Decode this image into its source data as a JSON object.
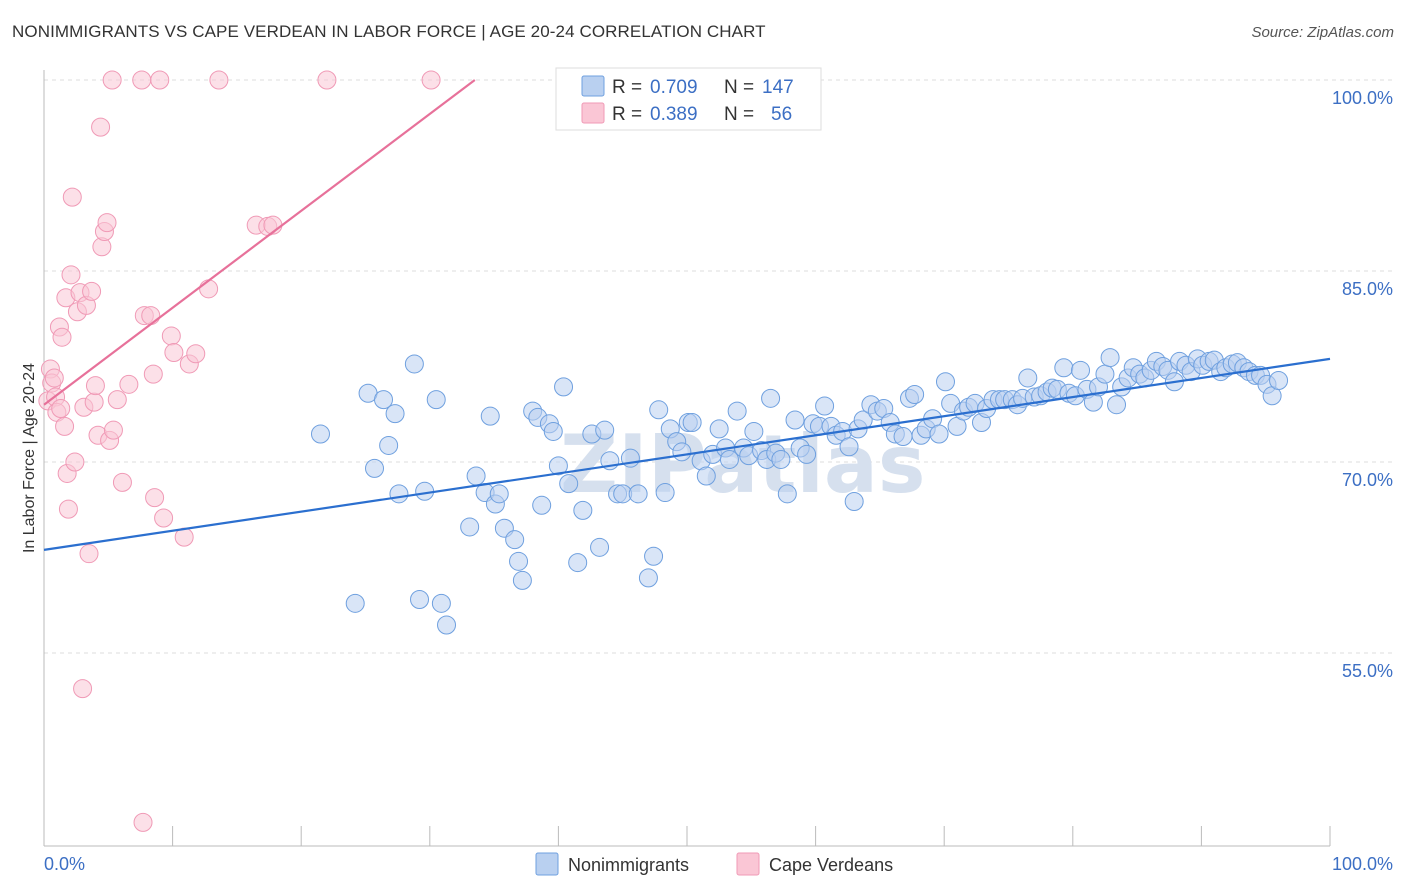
{
  "title": "NONIMMIGRANTS VS CAPE VERDEAN IN LABOR FORCE | AGE 20-24 CORRELATION CHART",
  "source": "Source: ZipAtlas.com",
  "watermark": "ZIPatlas",
  "colors": {
    "blue": "#6fa0df",
    "blue_fill": "#b9d0f0",
    "blue_line": "#2b6fcf",
    "pink": "#f09ab6",
    "pink_fill": "#fac6d5",
    "pink_line": "#e7719a",
    "grid": "#dddddd",
    "tick_text": "#3c6fc4"
  },
  "legend": {
    "rows": [
      {
        "r_label": "R =",
        "r_value": "0.709",
        "n_label": "N =",
        "n_value": "147"
      },
      {
        "r_label": "R =",
        "r_value": "0.389",
        "n_label": "N =",
        "n_value": "56"
      }
    ]
  },
  "chart_data": {
    "type": "scatter",
    "xlabel": "",
    "ylabel": "In Labor Force | Age 20-24",
    "x_tick_labels": [
      "0.0%",
      "100.0%"
    ],
    "y_tick_labels": [
      "55.0%",
      "70.0%",
      "85.0%",
      "100.0%"
    ],
    "xlim": [
      0,
      100
    ],
    "ylim": [
      42,
      100
    ],
    "grid": true,
    "legend_position": "top-center",
    "series": [
      {
        "name": "Nonimmigrants",
        "color": "#6fa0df",
        "trend": {
          "x": [
            0,
            100
          ],
          "y": [
            63.1,
            78.1
          ]
        },
        "points": [
          [
            21.5,
            72.2
          ],
          [
            24.2,
            58.9
          ],
          [
            25.2,
            75.4
          ],
          [
            25.7,
            69.5
          ],
          [
            26.4,
            74.9
          ],
          [
            26.8,
            71.3
          ],
          [
            27.3,
            73.8
          ],
          [
            27.6,
            67.5
          ],
          [
            28.8,
            77.7
          ],
          [
            29.2,
            59.2
          ],
          [
            29.6,
            67.7
          ],
          [
            30.5,
            74.9
          ],
          [
            30.9,
            58.9
          ],
          [
            31.3,
            57.2
          ],
          [
            33.1,
            64.9
          ],
          [
            33.6,
            68.9
          ],
          [
            34.3,
            67.6
          ],
          [
            34.7,
            73.6
          ],
          [
            35.1,
            66.7
          ],
          [
            35.4,
            67.5
          ],
          [
            35.8,
            64.8
          ],
          [
            36.6,
            63.9
          ],
          [
            36.9,
            62.2
          ],
          [
            37.2,
            60.7
          ],
          [
            38.0,
            74.0
          ],
          [
            38.4,
            73.5
          ],
          [
            38.7,
            66.6
          ],
          [
            39.3,
            73.0
          ],
          [
            39.6,
            72.4
          ],
          [
            40.0,
            69.7
          ],
          [
            40.4,
            75.9
          ],
          [
            40.8,
            68.3
          ],
          [
            41.5,
            62.1
          ],
          [
            41.9,
            66.2
          ],
          [
            42.6,
            72.2
          ],
          [
            43.2,
            63.3
          ],
          [
            43.6,
            72.5
          ],
          [
            44.0,
            70.1
          ],
          [
            44.6,
            67.5
          ],
          [
            45.0,
            67.5
          ],
          [
            45.6,
            70.3
          ],
          [
            46.2,
            67.5
          ],
          [
            47.0,
            60.9
          ],
          [
            47.4,
            62.6
          ],
          [
            47.8,
            74.1
          ],
          [
            48.3,
            67.6
          ],
          [
            48.7,
            72.6
          ],
          [
            49.2,
            71.6
          ],
          [
            49.6,
            70.8
          ],
          [
            50.1,
            73.1
          ],
          [
            50.4,
            73.1
          ],
          [
            51.1,
            70.1
          ],
          [
            51.5,
            68.9
          ],
          [
            52.0,
            70.6
          ],
          [
            52.5,
            72.6
          ],
          [
            53.0,
            71.1
          ],
          [
            53.3,
            70.2
          ],
          [
            53.9,
            74.0
          ],
          [
            54.4,
            71.1
          ],
          [
            54.8,
            70.5
          ],
          [
            55.2,
            72.4
          ],
          [
            55.8,
            70.9
          ],
          [
            56.2,
            70.2
          ],
          [
            56.5,
            75.0
          ],
          [
            56.9,
            70.7
          ],
          [
            57.3,
            70.2
          ],
          [
            57.8,
            67.5
          ],
          [
            58.4,
            73.3
          ],
          [
            58.8,
            71.1
          ],
          [
            59.3,
            70.6
          ],
          [
            59.8,
            73.0
          ],
          [
            60.3,
            72.8
          ],
          [
            60.7,
            74.4
          ],
          [
            61.2,
            72.8
          ],
          [
            61.6,
            72.1
          ],
          [
            62.1,
            72.4
          ],
          [
            62.6,
            71.2
          ],
          [
            63.0,
            66.9
          ],
          [
            63.3,
            72.6
          ],
          [
            63.7,
            73.3
          ],
          [
            64.3,
            74.5
          ],
          [
            64.8,
            74.0
          ],
          [
            65.3,
            74.2
          ],
          [
            65.8,
            73.1
          ],
          [
            66.2,
            72.2
          ],
          [
            66.8,
            72.0
          ],
          [
            67.3,
            75.0
          ],
          [
            67.7,
            75.3
          ],
          [
            68.2,
            72.1
          ],
          [
            68.6,
            72.6
          ],
          [
            69.1,
            73.4
          ],
          [
            69.6,
            72.2
          ],
          [
            70.1,
            76.3
          ],
          [
            70.5,
            74.6
          ],
          [
            71.0,
            72.8
          ],
          [
            71.5,
            74.0
          ],
          [
            71.9,
            74.3
          ],
          [
            72.4,
            74.6
          ],
          [
            72.9,
            73.1
          ],
          [
            73.3,
            74.2
          ],
          [
            73.8,
            74.9
          ],
          [
            74.3,
            74.9
          ],
          [
            74.7,
            74.9
          ],
          [
            75.3,
            74.9
          ],
          [
            75.7,
            74.5
          ],
          [
            76.1,
            75.0
          ],
          [
            76.5,
            76.6
          ],
          [
            77.0,
            75.1
          ],
          [
            77.5,
            75.2
          ],
          [
            78.0,
            75.5
          ],
          [
            78.4,
            75.8
          ],
          [
            78.8,
            75.7
          ],
          [
            79.3,
            77.4
          ],
          [
            79.7,
            75.4
          ],
          [
            80.2,
            75.2
          ],
          [
            80.6,
            77.2
          ],
          [
            81.1,
            75.7
          ],
          [
            81.6,
            74.7
          ],
          [
            82.0,
            75.9
          ],
          [
            82.5,
            76.9
          ],
          [
            82.9,
            78.2
          ],
          [
            83.4,
            74.5
          ],
          [
            83.8,
            75.9
          ],
          [
            84.3,
            76.6
          ],
          [
            84.7,
            77.4
          ],
          [
            85.2,
            76.9
          ],
          [
            85.6,
            76.6
          ],
          [
            86.1,
            77.2
          ],
          [
            86.5,
            77.9
          ],
          [
            87.0,
            77.5
          ],
          [
            87.4,
            77.2
          ],
          [
            87.9,
            76.3
          ],
          [
            88.3,
            77.9
          ],
          [
            88.8,
            77.6
          ],
          [
            89.2,
            77.1
          ],
          [
            89.7,
            78.1
          ],
          [
            90.1,
            77.6
          ],
          [
            90.6,
            77.9
          ],
          [
            91.0,
            78.0
          ],
          [
            91.5,
            77.1
          ],
          [
            91.9,
            77.4
          ],
          [
            92.4,
            77.7
          ],
          [
            92.8,
            77.8
          ],
          [
            93.3,
            77.4
          ],
          [
            93.7,
            77.1
          ],
          [
            94.2,
            76.8
          ],
          [
            94.6,
            76.8
          ],
          [
            95.1,
            76.1
          ],
          [
            95.5,
            75.2
          ],
          [
            96.0,
            76.4
          ]
        ]
      },
      {
        "name": "Cape Verdeans",
        "color": "#f09ab6",
        "trend": {
          "x": [
            0,
            33.5
          ],
          "y": [
            74.5,
            100
          ]
        },
        "points": [
          [
            0.3,
            74.8
          ],
          [
            0.5,
            77.3
          ],
          [
            0.6,
            76.2
          ],
          [
            0.8,
            76.6
          ],
          [
            0.9,
            75.1
          ],
          [
            1.0,
            73.9
          ],
          [
            1.2,
            80.6
          ],
          [
            1.3,
            74.2
          ],
          [
            1.4,
            79.8
          ],
          [
            1.6,
            72.8
          ],
          [
            1.7,
            82.9
          ],
          [
            1.8,
            69.1
          ],
          [
            1.9,
            66.3
          ],
          [
            2.1,
            84.7
          ],
          [
            2.2,
            90.8
          ],
          [
            2.4,
            70.0
          ],
          [
            2.6,
            81.8
          ],
          [
            2.8,
            83.3
          ],
          [
            3.0,
            52.2
          ],
          [
            3.1,
            74.3
          ],
          [
            3.3,
            82.3
          ],
          [
            3.5,
            62.8
          ],
          [
            3.7,
            83.4
          ],
          [
            3.9,
            74.7
          ],
          [
            4.0,
            76.0
          ],
          [
            4.2,
            72.1
          ],
          [
            4.4,
            96.3
          ],
          [
            4.5,
            86.9
          ],
          [
            4.7,
            88.1
          ],
          [
            4.9,
            88.8
          ],
          [
            5.1,
            71.7
          ],
          [
            5.4,
            72.5
          ],
          [
            5.7,
            74.9
          ],
          [
            6.1,
            68.4
          ],
          [
            6.6,
            76.1
          ],
          [
            7.7,
            41.7
          ],
          [
            7.8,
            81.5
          ],
          [
            8.3,
            81.5
          ],
          [
            8.5,
            76.9
          ],
          [
            8.6,
            67.2
          ],
          [
            9.3,
            65.6
          ],
          [
            9.9,
            79.9
          ],
          [
            10.1,
            78.6
          ],
          [
            10.9,
            64.1
          ],
          [
            11.3,
            77.7
          ],
          [
            11.8,
            78.5
          ],
          [
            12.8,
            83.6
          ],
          [
            5.3,
            100.0
          ],
          [
            7.6,
            100.0
          ],
          [
            9.0,
            100.0
          ],
          [
            13.6,
            100.0
          ],
          [
            16.5,
            88.6
          ],
          [
            17.4,
            88.5
          ],
          [
            17.8,
            88.6
          ],
          [
            22.0,
            100.0
          ],
          [
            30.1,
            100.0
          ]
        ]
      }
    ]
  },
  "bottom_legend": {
    "items": [
      "Nonimmigrants",
      "Cape Verdeans"
    ]
  }
}
